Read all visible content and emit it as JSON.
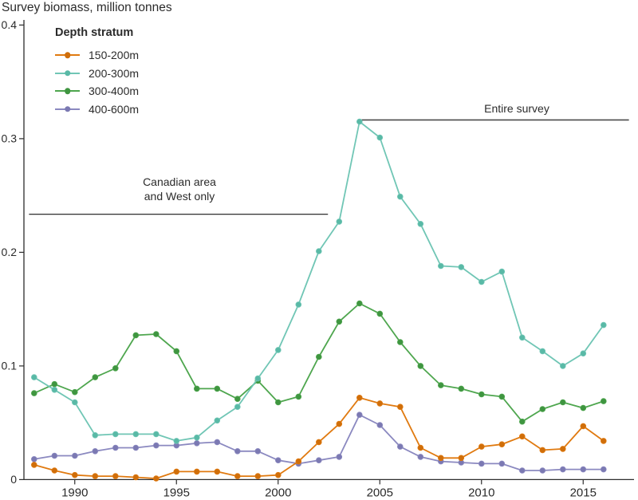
{
  "title": "Survey biomass, million tonnes",
  "legend": {
    "title": "Depth stratum",
    "items": [
      {
        "label": "150-200m",
        "color": "#e07a10",
        "marker": "#cf6e0a"
      },
      {
        "label": "200-300m",
        "color": "#70c6b5",
        "marker": "#59b9a6"
      },
      {
        "label": "300-400m",
        "color": "#4ea64e",
        "marker": "#3f9540"
      },
      {
        "label": "400-600m",
        "color": "#8b89c0",
        "marker": "#7b79b2"
      }
    ]
  },
  "annotations": {
    "canadian": {
      "line1": "Canadian area",
      "line2": "and West only",
      "rule": {
        "from_year": 1987.75,
        "to_year": 2002.45,
        "value": 0.2335,
        "color": "#161616",
        "width": 1.2
      }
    },
    "entire": {
      "line1": "Entire survey",
      "rule": {
        "from_year": 2004.1,
        "to_year": 2017.25,
        "value": 0.3165,
        "color": "#4a4a4a",
        "width": 1.6
      }
    }
  },
  "chart_data": {
    "type": "line",
    "title": "Survey biomass, million tonnes",
    "xlabel": "",
    "ylabel": "Survey biomass, million tonnes",
    "x": [
      1988,
      1989,
      1990,
      1991,
      1992,
      1993,
      1994,
      1995,
      1996,
      1997,
      1998,
      1999,
      2000,
      2001,
      2002,
      2003,
      2004,
      2005,
      2006,
      2007,
      2008,
      2009,
      2010,
      2011,
      2012,
      2013,
      2014,
      2015,
      2016
    ],
    "xticks": [
      1990,
      1995,
      2000,
      2005,
      2010,
      2015
    ],
    "yticks": [
      0,
      0.1,
      0.2,
      0.3,
      0.4
    ],
    "ytick_labels": [
      "0",
      "0.1",
      "0.2",
      "0.3",
      "0.4"
    ],
    "xlim": [
      1987.5,
      2017.5
    ],
    "ylim": [
      0,
      0.4
    ],
    "grid": false,
    "legend_position": "upper left",
    "series": [
      {
        "name": "150-200m",
        "color": "#e07a10",
        "marker": "#cf6e0a",
        "values": [
          0.013,
          0.008,
          0.004,
          0.003,
          0.003,
          0.002,
          0.001,
          0.007,
          0.007,
          0.007,
          0.003,
          0.003,
          0.004,
          0.016,
          0.033,
          0.049,
          0.072,
          0.067,
          0.064,
          0.028,
          0.019,
          0.019,
          0.029,
          0.031,
          0.038,
          0.026,
          0.027,
          0.047,
          0.034
        ]
      },
      {
        "name": "200-300m",
        "color": "#70c6b5",
        "marker": "#59b9a6",
        "values": [
          0.09,
          0.079,
          0.068,
          0.039,
          0.04,
          0.04,
          0.04,
          0.034,
          0.037,
          0.052,
          0.064,
          0.089,
          0.114,
          0.154,
          0.201,
          0.227,
          0.315,
          0.301,
          0.249,
          0.225,
          0.188,
          0.187,
          0.174,
          0.183,
          0.125,
          0.113,
          0.1,
          0.111,
          0.136
        ]
      },
      {
        "name": "300-400m",
        "color": "#4ea64e",
        "marker": "#3f9540",
        "values": [
          0.076,
          0.084,
          0.077,
          0.09,
          0.098,
          0.127,
          0.128,
          0.113,
          0.08,
          0.08,
          0.071,
          0.087,
          0.068,
          0.073,
          0.108,
          0.139,
          0.155,
          0.146,
          0.121,
          0.1,
          0.083,
          0.08,
          0.075,
          0.073,
          0.051,
          0.062,
          0.068,
          0.063,
          0.069
        ]
      },
      {
        "name": "400-600m",
        "color": "#8b89c0",
        "marker": "#7b79b2",
        "values": [
          0.018,
          0.021,
          0.021,
          0.025,
          0.028,
          0.028,
          0.03,
          0.03,
          0.032,
          0.033,
          0.025,
          0.025,
          0.017,
          0.014,
          0.017,
          0.02,
          0.057,
          0.048,
          0.029,
          0.02,
          0.016,
          0.015,
          0.014,
          0.014,
          0.008,
          0.008,
          0.009,
          0.009,
          0.009
        ]
      }
    ]
  }
}
